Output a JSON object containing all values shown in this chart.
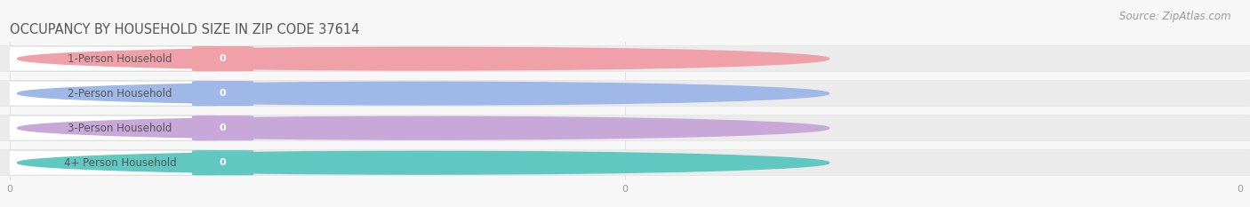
{
  "title": "OCCUPANCY BY HOUSEHOLD SIZE IN ZIP CODE 37614",
  "source": "Source: ZipAtlas.com",
  "categories": [
    "1-Person Household",
    "2-Person Household",
    "3-Person Household",
    "4+ Person Household"
  ],
  "values": [
    0,
    0,
    0,
    0
  ],
  "accent_colors": [
    "#f0a0a8",
    "#a0b8e8",
    "#c8a8d8",
    "#60c8c0"
  ],
  "value_bg_colors": [
    "#f0a0a8",
    "#a0b8e8",
    "#c8a8d8",
    "#60c8c0"
  ],
  "label_box_bg": "#ffffff",
  "bar_track_color": "#ebebeb",
  "bar_track_edge": "#e0e0e0",
  "background_color": "#f7f7f7",
  "title_color": "#555555",
  "source_color": "#999999",
  "label_text_color": "#555555",
  "value_text_color": "#ffffff",
  "title_fontsize": 10.5,
  "source_fontsize": 8.5,
  "label_fontsize": 8.5,
  "value_fontsize": 8,
  "tick_fontsize": 8,
  "tick_color": "#999999",
  "figsize": [
    14.06,
    2.33
  ],
  "dpi": 100
}
